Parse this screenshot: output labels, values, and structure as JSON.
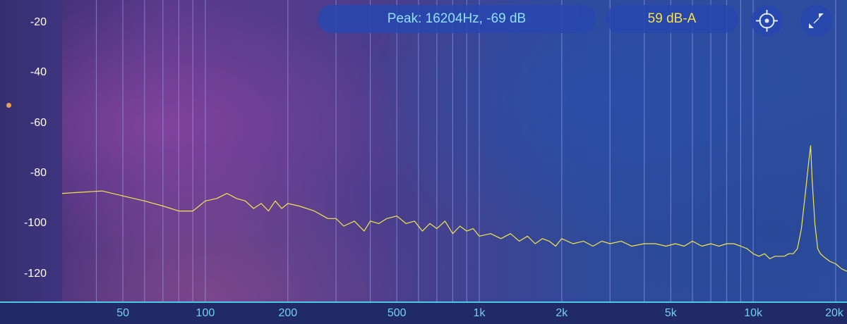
{
  "header": {
    "peak_text": "Peak: 16204Hz, -69 dB",
    "level_text": "59 dB-A",
    "target_button_icon": "crosshair-icon",
    "expand_button_icon": "collapse-icon"
  },
  "colors": {
    "trace": "#f3e84a",
    "axis_label": "#74d0f0",
    "peak_text": "#8fe0ff",
    "level_text": "#f6e04d",
    "marker": "#e6a24a"
  },
  "chart_data": {
    "type": "line",
    "x_scale": "log",
    "xlim": [
      30,
      22000
    ],
    "ylim": [
      -131,
      -11
    ],
    "y_ticks": [
      -20,
      -40,
      -60,
      -80,
      -100,
      -120
    ],
    "y_tick_labels": [
      "-20",
      "-40",
      "-60",
      "-80",
      "-100",
      "-120"
    ],
    "x_ticks": [
      50,
      100,
      200,
      500,
      1000,
      2000,
      5000,
      10000,
      20000
    ],
    "x_tick_labels": [
      "50",
      "100",
      "200",
      "500",
      "1k",
      "2k",
      "5k",
      "10k",
      "20k"
    ],
    "grid_x": [
      40,
      50,
      60,
      70,
      80,
      90,
      100,
      200,
      300,
      400,
      500,
      600,
      700,
      800,
      900,
      1000,
      2000,
      3000,
      4000,
      5000,
      6000,
      7000,
      8000,
      9000,
      10000,
      20000
    ],
    "series": [
      {
        "x": [
          30,
          42,
          50,
          60,
          70,
          80,
          90,
          100,
          110,
          120,
          130,
          140,
          150,
          160,
          170,
          180,
          190,
          200,
          220,
          250,
          280,
          300,
          320,
          350,
          380,
          400,
          430,
          460,
          500,
          540,
          580,
          620,
          660,
          700,
          750,
          800,
          850,
          900,
          950,
          1000,
          1100,
          1200,
          1300,
          1400,
          1500,
          1600,
          1700,
          1800,
          1900,
          2000,
          2200,
          2400,
          2600,
          2800,
          3000,
          3300,
          3600,
          4000,
          4400,
          4800,
          5200,
          5600,
          6000,
          6500,
          7000,
          7500,
          8000,
          8500,
          9000,
          9500,
          10000,
          10500,
          11000,
          11500,
          12000,
          12500,
          13000,
          13500,
          14000,
          14500,
          15000,
          15500,
          16000,
          16204,
          16400,
          16800,
          17200,
          17600,
          18000,
          19000,
          20000,
          21000,
          22000
        ],
        "y": [
          -88,
          -87,
          -89,
          -91,
          -93,
          -95,
          -95,
          -91,
          -90,
          -88,
          -90,
          -91,
          -94,
          -92,
          -95,
          -91,
          -94,
          -92,
          -93,
          -95,
          -98,
          -98,
          -101,
          -99,
          -103,
          -99,
          -100,
          -98,
          -97,
          -100,
          -99,
          -103,
          -100,
          -102,
          -99,
          -104,
          -101,
          -103,
          -102,
          -105,
          -104,
          -106,
          -104,
          -107,
          -105,
          -108,
          -106,
          -107,
          -109,
          -106,
          -108,
          -107,
          -109,
          -107,
          -108,
          -107,
          -109,
          -108,
          -108,
          -109,
          -108,
          -109,
          -107,
          -109,
          -108,
          -109,
          -108,
          -108,
          -109,
          -110,
          -112,
          -113,
          -112,
          -114,
          -113,
          -113,
          -113,
          -112,
          -112,
          -110,
          -102,
          -88,
          -74,
          -69,
          -82,
          -100,
          -110,
          -112,
          -113,
          -115,
          -116,
          -118,
          -119
        ]
      }
    ]
  }
}
